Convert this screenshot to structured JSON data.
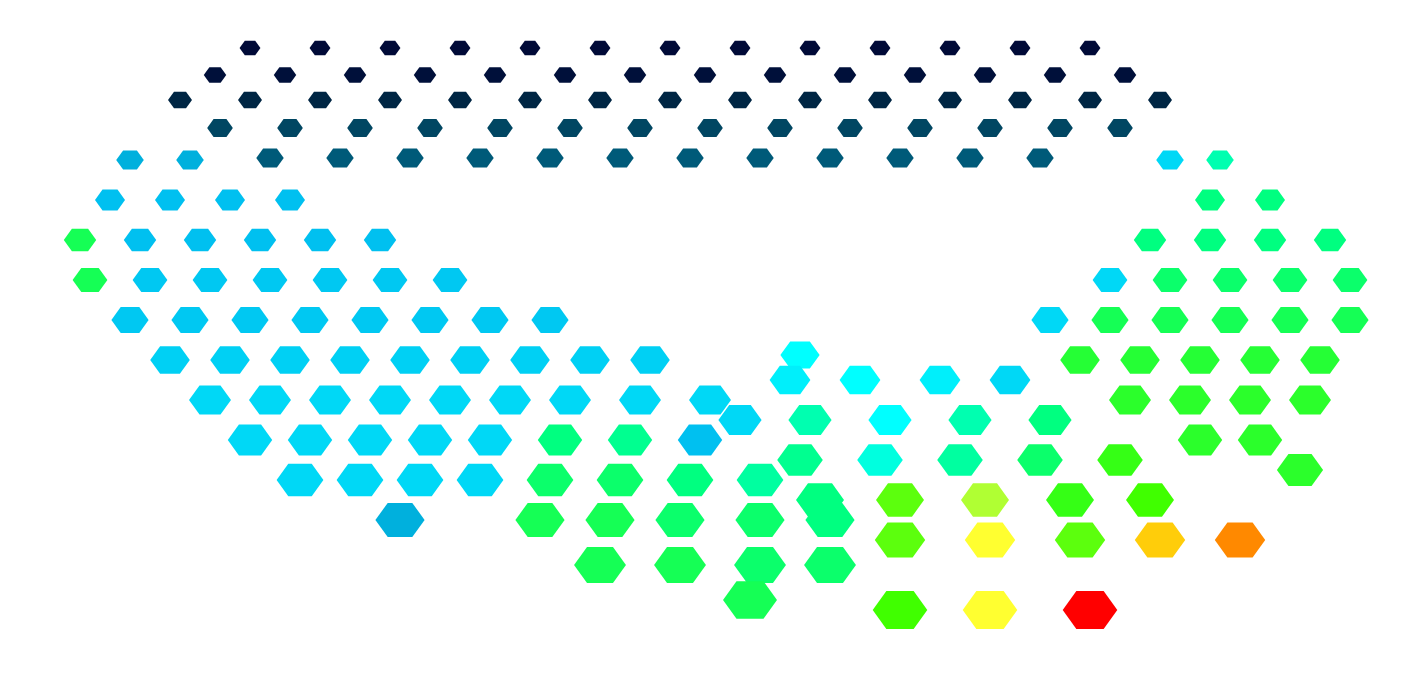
{
  "chart_data": {
    "type": "scatter",
    "marker": "hexagon",
    "tick_labels": false,
    "grid": false,
    "xlim": [
      0,
      1414
    ],
    "ylim": [
      0,
      686
    ],
    "clim": [
      0,
      1
    ],
    "x": [
      250,
      320,
      390,
      460,
      530,
      600,
      670,
      740,
      810,
      880,
      950,
      1020,
      1090,
      215,
      285,
      355,
      425,
      495,
      565,
      635,
      705,
      775,
      845,
      915,
      985,
      1055,
      1125,
      180,
      250,
      320,
      390,
      460,
      530,
      600,
      670,
      740,
      810,
      880,
      950,
      1020,
      1090,
      1160,
      220,
      290,
      360,
      430,
      500,
      570,
      640,
      710,
      780,
      850,
      920,
      990,
      1060,
      1120,
      270,
      340,
      410,
      480,
      550,
      620,
      690,
      760,
      830,
      900,
      970,
      1040,
      130,
      190,
      110,
      170,
      230,
      290,
      80,
      140,
      200,
      260,
      320,
      380,
      90,
      150,
      210,
      270,
      330,
      390,
      450,
      130,
      190,
      250,
      310,
      370,
      430,
      490,
      550,
      170,
      230,
      290,
      350,
      410,
      470,
      530,
      590,
      650,
      210,
      270,
      330,
      390,
      450,
      510,
      570,
      640,
      710,
      250,
      310,
      370,
      430,
      490,
      560,
      630,
      700,
      300,
      360,
      420,
      480,
      550,
      620,
      690,
      760,
      400,
      540,
      610,
      680,
      760,
      830,
      600,
      680,
      760,
      830,
      750,
      800,
      790,
      860,
      940,
      1010,
      740,
      810,
      890,
      970,
      1050,
      800,
      880,
      960,
      1040,
      1120,
      820,
      900,
      985,
      1070,
      1150,
      900,
      990,
      1080,
      1160,
      1240,
      900,
      990,
      1090,
      1170,
      1220,
      1210,
      1270,
      1150,
      1210,
      1270,
      1330,
      1110,
      1170,
      1230,
      1290,
      1350,
      1050,
      1110,
      1170,
      1230,
      1290,
      1350,
      1080,
      1140,
      1200,
      1260,
      1320,
      1130,
      1190,
      1250,
      1310,
      1200,
      1260,
      1300
    ],
    "y": [
      638,
      638,
      638,
      638,
      638,
      638,
      638,
      638,
      638,
      638,
      638,
      638,
      638,
      611,
      611,
      611,
      611,
      611,
      611,
      611,
      611,
      611,
      611,
      611,
      611,
      611,
      611,
      586,
      586,
      586,
      586,
      586,
      586,
      586,
      586,
      586,
      586,
      586,
      586,
      586,
      586,
      586,
      558,
      558,
      558,
      558,
      558,
      558,
      558,
      558,
      558,
      558,
      558,
      558,
      558,
      558,
      528,
      528,
      528,
      528,
      528,
      528,
      528,
      528,
      528,
      528,
      528,
      528,
      526,
      526,
      486,
      486,
      486,
      486,
      446,
      446,
      446,
      446,
      446,
      446,
      406,
      406,
      406,
      406,
      406,
      406,
      406,
      366,
      366,
      366,
      366,
      366,
      366,
      366,
      366,
      326,
      326,
      326,
      326,
      326,
      326,
      326,
      326,
      326,
      286,
      286,
      286,
      286,
      286,
      286,
      286,
      286,
      286,
      246,
      246,
      246,
      246,
      246,
      246,
      246,
      246,
      206,
      206,
      206,
      206,
      206,
      206,
      206,
      206,
      166,
      166,
      166,
      166,
      166,
      166,
      121,
      121,
      121,
      121,
      86,
      331,
      306,
      306,
      306,
      306,
      266,
      266,
      266,
      266,
      266,
      226,
      226,
      226,
      226,
      226,
      186,
      186,
      186,
      186,
      186,
      146,
      146,
      146,
      146,
      146,
      76,
      76,
      76,
      526,
      526,
      486,
      486,
      446,
      446,
      446,
      446,
      406,
      406,
      406,
      406,
      406,
      366,
      366,
      366,
      366,
      366,
      366,
      326,
      326,
      326,
      326,
      326,
      286,
      286,
      286,
      286,
      246,
      246,
      216
    ],
    "values": [
      0.03,
      0.03,
      0.03,
      0.03,
      0.03,
      0.03,
      0.03,
      0.03,
      0.03,
      0.03,
      0.03,
      0.03,
      0.03,
      0.05,
      0.05,
      0.05,
      0.05,
      0.05,
      0.05,
      0.05,
      0.05,
      0.05,
      0.05,
      0.05,
      0.05,
      0.05,
      0.05,
      0.12,
      0.12,
      0.12,
      0.12,
      0.12,
      0.12,
      0.12,
      0.12,
      0.12,
      0.12,
      0.12,
      0.12,
      0.12,
      0.12,
      0.12,
      0.22,
      0.22,
      0.22,
      0.22,
      0.22,
      0.22,
      0.22,
      0.22,
      0.22,
      0.22,
      0.22,
      0.22,
      0.22,
      0.22,
      0.28,
      0.28,
      0.28,
      0.28,
      0.28,
      0.28,
      0.28,
      0.28,
      0.28,
      0.28,
      0.28,
      0.28,
      0.4,
      0.4,
      0.42,
      0.42,
      0.42,
      0.42,
      0.62,
      0.42,
      0.42,
      0.42,
      0.42,
      0.42,
      0.62,
      0.43,
      0.43,
      0.43,
      0.43,
      0.43,
      0.43,
      0.43,
      0.43,
      0.43,
      0.43,
      0.43,
      0.43,
      0.43,
      0.43,
      0.44,
      0.44,
      0.44,
      0.44,
      0.44,
      0.44,
      0.44,
      0.44,
      0.44,
      0.45,
      0.45,
      0.45,
      0.45,
      0.45,
      0.45,
      0.45,
      0.45,
      0.45,
      0.45,
      0.45,
      0.45,
      0.45,
      0.45,
      0.58,
      0.57,
      0.42,
      0.45,
      0.45,
      0.45,
      0.45,
      0.6,
      0.6,
      0.58,
      0.56,
      0.4,
      0.62,
      0.62,
      0.6,
      0.6,
      0.58,
      0.62,
      0.62,
      0.6,
      0.6,
      0.62,
      0.5,
      0.48,
      0.5,
      0.48,
      0.45,
      0.45,
      0.55,
      0.5,
      0.55,
      0.58,
      0.57,
      0.52,
      0.56,
      0.6,
      0.68,
      0.58,
      0.72,
      0.78,
      0.68,
      0.7,
      0.72,
      0.88,
      0.72,
      0.92,
      0.95,
      0.7,
      0.88,
      1.0,
      0.45,
      0.55,
      0.58,
      0.58,
      0.58,
      0.58,
      0.58,
      0.58,
      0.45,
      0.6,
      0.6,
      0.6,
      0.6,
      0.45,
      0.62,
      0.62,
      0.62,
      0.62,
      0.62,
      0.65,
      0.65,
      0.65,
      0.65,
      0.65,
      0.66,
      0.66,
      0.66,
      0.66,
      0.66,
      0.66,
      0.66
    ]
  }
}
